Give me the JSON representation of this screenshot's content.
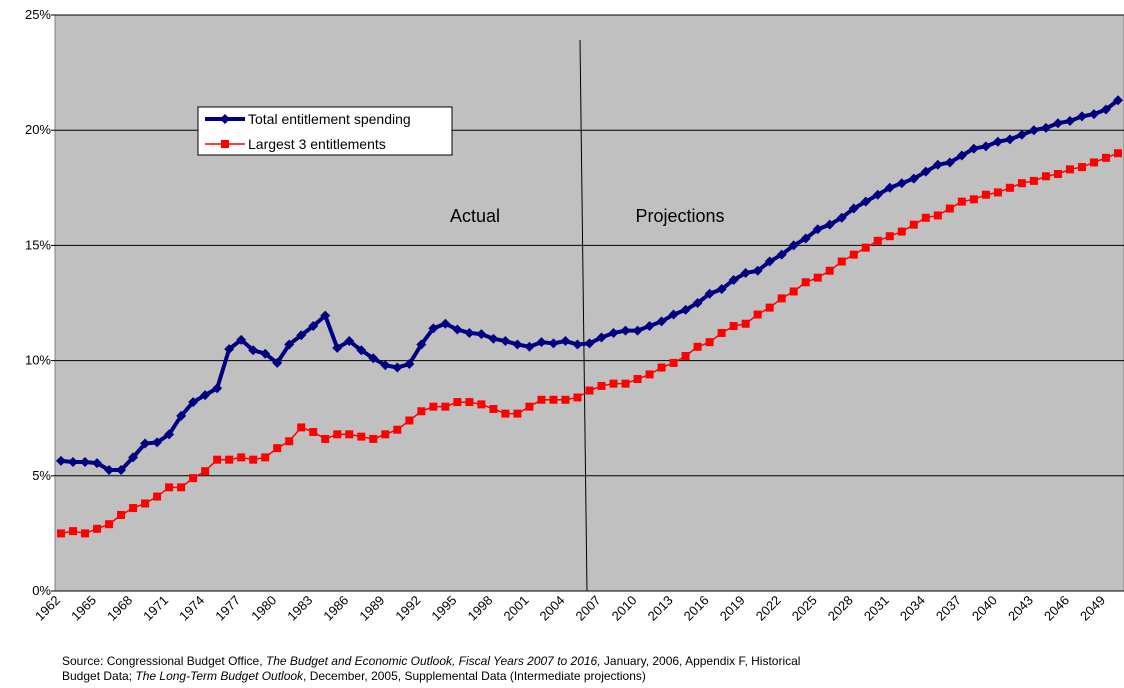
{
  "chart_data": {
    "type": "line",
    "categories": [
      "1962",
      null,
      null,
      "1965",
      null,
      null,
      "1968",
      null,
      null,
      "1971",
      null,
      null,
      "1974",
      null,
      null,
      "1977",
      null,
      null,
      "1980",
      null,
      null,
      "1983",
      null,
      null,
      "1986",
      null,
      null,
      "1989",
      null,
      null,
      "1992",
      null,
      null,
      "1995",
      null,
      null,
      "1998",
      null,
      null,
      "2001",
      null,
      null,
      "2004",
      null,
      null,
      "2007",
      null,
      null,
      "2010",
      null,
      null,
      "2013",
      null,
      null,
      "2016",
      null,
      null,
      "2019",
      null,
      null,
      "2022",
      null,
      null,
      "2025",
      null,
      null,
      "2028",
      null,
      null,
      "2031",
      null,
      null,
      "2034",
      null,
      null,
      "2037",
      null,
      null,
      "2040",
      null,
      null,
      "2043",
      null,
      null,
      "2046",
      null,
      null,
      "2049",
      null
    ],
    "series": [
      {
        "name": "Total entitlement spending",
        "color": "#000080",
        "marker": "diamond",
        "values": [
          5.65,
          5.6,
          5.6,
          5.55,
          5.25,
          5.25,
          5.8,
          6.4,
          6.45,
          6.8,
          7.6,
          8.2,
          8.5,
          8.8,
          10.5,
          10.9,
          10.45,
          10.3,
          9.9,
          10.7,
          11.1,
          11.5,
          11.95,
          10.55,
          10.85,
          10.45,
          10.1,
          9.8,
          9.7,
          9.85,
          10.7,
          11.4,
          11.6,
          11.35,
          11.2,
          11.15,
          10.95,
          10.85,
          10.7,
          10.6,
          10.8,
          10.75,
          10.85,
          10.7,
          10.75,
          11.0,
          11.2,
          11.3,
          11.3,
          11.5,
          11.7,
          12.0,
          12.2,
          12.5,
          12.9,
          13.1,
          13.5,
          13.8,
          13.9,
          14.3,
          14.6,
          15.0,
          15.3,
          15.7,
          15.9,
          16.2,
          16.6,
          16.9,
          17.2,
          17.5,
          17.7,
          17.9,
          18.2,
          18.5,
          18.6,
          18.9,
          19.2,
          19.3,
          19.5,
          19.6,
          19.8,
          20.0,
          20.1,
          20.3,
          20.4,
          20.6,
          20.7,
          20.9,
          21.3
        ]
      },
      {
        "name": "Largest 3 entitlements",
        "color": "#ff0000",
        "marker": "square",
        "values": [
          2.5,
          2.6,
          2.5,
          2.7,
          2.9,
          3.3,
          3.6,
          3.8,
          4.1,
          4.5,
          4.5,
          4.9,
          5.2,
          5.7,
          5.7,
          5.8,
          5.7,
          5.8,
          6.2,
          6.5,
          7.1,
          6.9,
          6.6,
          6.8,
          6.8,
          6.7,
          6.6,
          6.8,
          7.0,
          7.4,
          7.8,
          8.0,
          8.0,
          8.2,
          8.2,
          8.1,
          7.9,
          7.7,
          7.7,
          8.0,
          8.3,
          8.3,
          8.3,
          8.4,
          8.7,
          8.9,
          9.0,
          9.0,
          9.2,
          9.4,
          9.7,
          9.9,
          10.2,
          10.6,
          10.8,
          11.2,
          11.5,
          11.6,
          12.0,
          12.3,
          12.7,
          13.0,
          13.4,
          13.6,
          13.9,
          14.3,
          14.6,
          14.9,
          15.2,
          15.4,
          15.6,
          15.9,
          16.2,
          16.3,
          16.6,
          16.9,
          17.0,
          17.2,
          17.3,
          17.5,
          17.7,
          17.8,
          18.0,
          18.1,
          18.3,
          18.4,
          18.6,
          18.8,
          19.0
        ]
      }
    ],
    "ylim": [
      0,
      25
    ],
    "yticks": [
      {
        "value": 0,
        "label": "0%"
      },
      {
        "value": 5,
        "label": "5%"
      },
      {
        "value": 10,
        "label": "10%"
      },
      {
        "value": 15,
        "label": "15%"
      },
      {
        "value": 20,
        "label": "20%"
      },
      {
        "value": 25,
        "label": "25%"
      }
    ],
    "grid": true,
    "annotations": [
      "Actual",
      "Projections"
    ],
    "source": [
      "Source: Congressional Budget Office, ",
      "The Budget and Economic Outlook, Fiscal Years 2007 to 2016,",
      " January, 2006, Appendix F, Historical",
      "Budget Data; ",
      "The Long-Term Budget Outlook",
      ", December, 2005, Supplemental Data (Intermediate projections)"
    ]
  }
}
